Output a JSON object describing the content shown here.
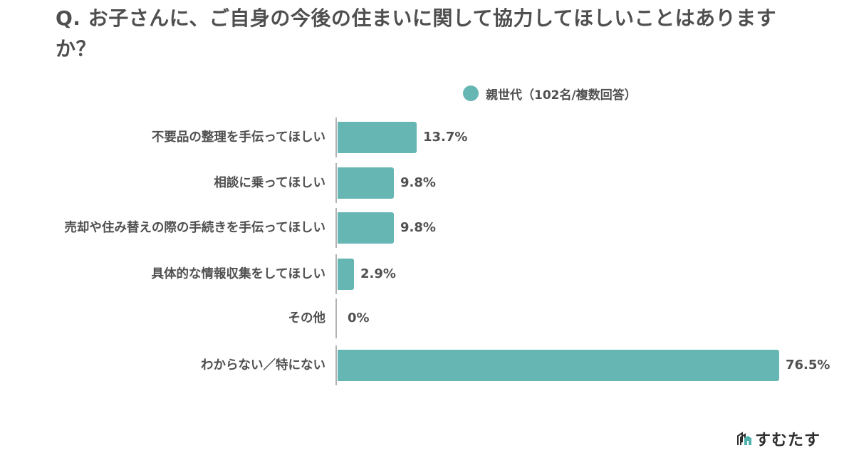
{
  "title": "Q. お子さんに、ご自身の今後の住まいに関して協力してほしいことはありますか？",
  "legend": {
    "label": "親世代（102名/複数回答）",
    "color": "#66b6b4"
  },
  "logo": {
    "text": "すむたす",
    "icon": "sumutasu-logo-icon"
  },
  "chart_data": {
    "type": "bar",
    "orientation": "horizontal",
    "title": "Q. お子さんに、ご自身の今後の住まいに関して協力してほしいことはありますか？",
    "xlabel": "",
    "ylabel": "",
    "unit": "%",
    "grid": false,
    "legend_position": "top-right",
    "categories": [
      "不要品の整理を手伝ってほしい",
      "相談に乗ってほしい",
      "売却や住み替えの際の手続きを手伝ってほしい",
      "具体的な情報収集をしてほしい",
      "その他",
      "わからない／特にない"
    ],
    "series": [
      {
        "name": "親世代（102名/複数回答）",
        "color": "#66b6b4",
        "values": [
          13.7,
          9.8,
          9.8,
          2.9,
          0,
          76.5
        ]
      }
    ],
    "value_labels": [
      "13.7%",
      "9.8%",
      "9.8%",
      "2.9%",
      "0%",
      "76.5%"
    ],
    "xlim": [
      0,
      100
    ]
  }
}
